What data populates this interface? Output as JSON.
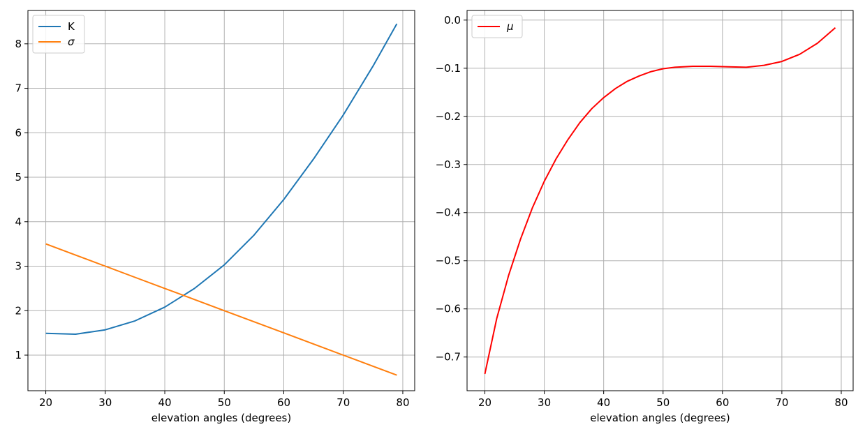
{
  "chart_data": [
    {
      "type": "line",
      "title": "",
      "xlabel": "elevation angles (degrees)",
      "ylabel": "",
      "xlim": [
        17,
        82
      ],
      "ylim": [
        0.2,
        8.75
      ],
      "xticks": [
        20,
        30,
        40,
        50,
        60,
        70,
        80
      ],
      "yticks": [
        1,
        2,
        3,
        4,
        5,
        6,
        7,
        8
      ],
      "grid": true,
      "legend": "top-left",
      "x": [
        20,
        25,
        30,
        35,
        40,
        45,
        50,
        55,
        60,
        65,
        70,
        75,
        79
      ],
      "series": [
        {
          "name": "K",
          "color": "#1f77b4",
          "values": [
            1.49,
            1.47,
            1.57,
            1.77,
            2.08,
            2.5,
            3.03,
            3.7,
            4.5,
            5.41,
            6.4,
            7.5,
            8.45
          ]
        },
        {
          "name": "σ",
          "color": "#ff7f0e",
          "values": [
            3.5,
            3.25,
            3.0,
            2.75,
            2.5,
            2.25,
            2.0,
            1.75,
            1.5,
            1.25,
            1.0,
            0.75,
            0.55
          ]
        }
      ]
    },
    {
      "type": "line",
      "title": "",
      "xlabel": "elevation angles (degrees)",
      "ylabel": "",
      "xlim": [
        17,
        82
      ],
      "ylim": [
        -0.77,
        0.02
      ],
      "xticks": [
        20,
        30,
        40,
        50,
        60,
        70,
        80
      ],
      "yticks": [
        0.0,
        -0.1,
        -0.2,
        -0.3,
        -0.4,
        -0.5,
        -0.6,
        -0.7
      ],
      "ytick_labels": [
        "0.0",
        "−0.1",
        "−0.2",
        "−0.3",
        "−0.4",
        "−0.5",
        "−0.6",
        "−0.7"
      ],
      "grid": true,
      "legend": "top-left",
      "x": [
        20,
        22,
        24,
        26,
        28,
        30,
        32,
        34,
        36,
        38,
        40,
        42,
        44,
        46,
        48,
        50,
        52,
        55,
        58,
        61,
        64,
        67,
        70,
        73,
        76,
        79
      ],
      "series": [
        {
          "name": "μ",
          "color": "#ff0000",
          "values": [
            -0.735,
            -0.62,
            -0.53,
            -0.455,
            -0.39,
            -0.335,
            -0.288,
            -0.248,
            -0.213,
            -0.184,
            -0.161,
            -0.142,
            -0.127,
            -0.116,
            -0.107,
            -0.101,
            -0.098,
            -0.096,
            -0.096,
            -0.097,
            -0.098,
            -0.094,
            -0.086,
            -0.071,
            -0.048,
            -0.016
          ]
        }
      ]
    }
  ]
}
